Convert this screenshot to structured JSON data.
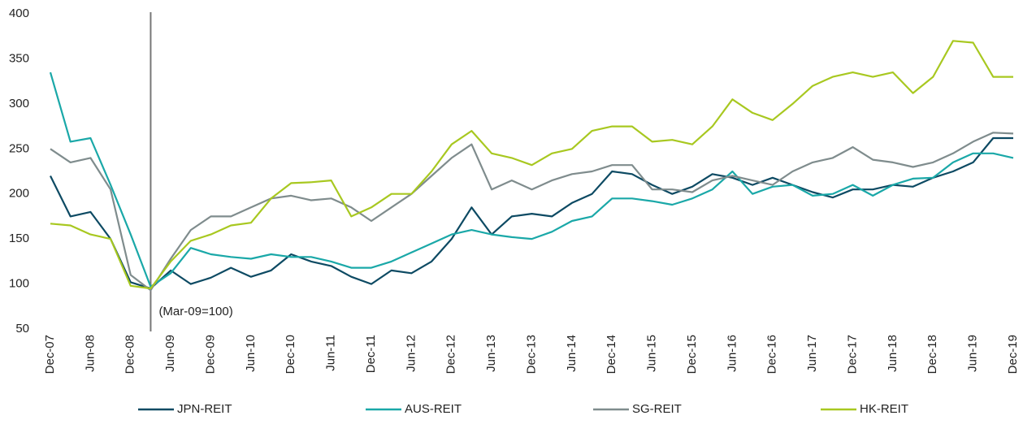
{
  "chart_data": {
    "type": "line",
    "annotation": "(Mar-09=100)",
    "vline_index": 5,
    "categories": [
      "Dec-07",
      null,
      "Jun-08",
      null,
      "Dec-08",
      null,
      "Jun-09",
      null,
      "Dec-09",
      null,
      "Jun-10",
      null,
      "Dec-10",
      null,
      "Jun-11",
      null,
      "Dec-11",
      null,
      "Jun-12",
      null,
      "Dec-12",
      null,
      "Jun-13",
      null,
      "Dec-13",
      null,
      "Jun-14",
      null,
      "Dec-14",
      null,
      "Jun-15",
      null,
      "Dec-15",
      null,
      "Jun-16",
      null,
      "Dec-16",
      null,
      "Jun-17",
      null,
      "Dec-17",
      null,
      "Jun-18",
      null,
      "Dec-18",
      null,
      "Jun-19",
      null,
      "Dec-19"
    ],
    "series": [
      {
        "name": "JPN-REIT",
        "color": "#0d4a63",
        "values": [
          220,
          175,
          180,
          150,
          102,
          95,
          115,
          100,
          107,
          118,
          108,
          115,
          133,
          125,
          120,
          108,
          100,
          115,
          112,
          125,
          150,
          185,
          155,
          175,
          178,
          175,
          190,
          200,
          225,
          222,
          210,
          200,
          208,
          222,
          218,
          210,
          218,
          210,
          202,
          196,
          205,
          205,
          210,
          208,
          218,
          225,
          235,
          262,
          262
        ]
      },
      {
        "name": "AUS-REIT",
        "color": "#1aa8a8",
        "values": [
          335,
          258,
          262,
          210,
          155,
          97,
          112,
          140,
          133,
          130,
          128,
          133,
          130,
          130,
          125,
          118,
          118,
          125,
          135,
          145,
          155,
          160,
          155,
          152,
          150,
          158,
          170,
          175,
          195,
          195,
          192,
          188,
          195,
          205,
          225,
          200,
          208,
          210,
          198,
          200,
          210,
          198,
          210,
          217,
          218,
          235,
          245,
          245,
          240
        ]
      },
      {
        "name": "SG-REIT",
        "color": "#7f8c8d",
        "values": [
          250,
          235,
          240,
          205,
          110,
          93,
          128,
          160,
          175,
          175,
          185,
          195,
          198,
          193,
          195,
          185,
          170,
          185,
          200,
          220,
          240,
          255,
          205,
          215,
          205,
          215,
          222,
          225,
          232,
          232,
          205,
          205,
          202,
          215,
          220,
          215,
          210,
          225,
          235,
          240,
          252,
          238,
          235,
          230,
          235,
          245,
          258,
          268,
          267
        ]
      },
      {
        "name": "HK-REIT",
        "color": "#a8c820",
        "values": [
          167,
          165,
          155,
          150,
          98,
          95,
          125,
          148,
          155,
          165,
          168,
          195,
          212,
          213,
          215,
          175,
          185,
          200,
          200,
          225,
          255,
          270,
          245,
          240,
          232,
          245,
          250,
          270,
          275,
          275,
          258,
          260,
          255,
          275,
          305,
          290,
          282,
          300,
          320,
          330,
          335,
          330,
          335,
          312,
          330,
          370,
          368,
          330,
          330
        ]
      }
    ],
    "ylim": [
      50,
      400
    ],
    "yticks": [
      50,
      100,
      150,
      200,
      250,
      300,
      350,
      400
    ],
    "grid": false,
    "legend": "bottom"
  }
}
